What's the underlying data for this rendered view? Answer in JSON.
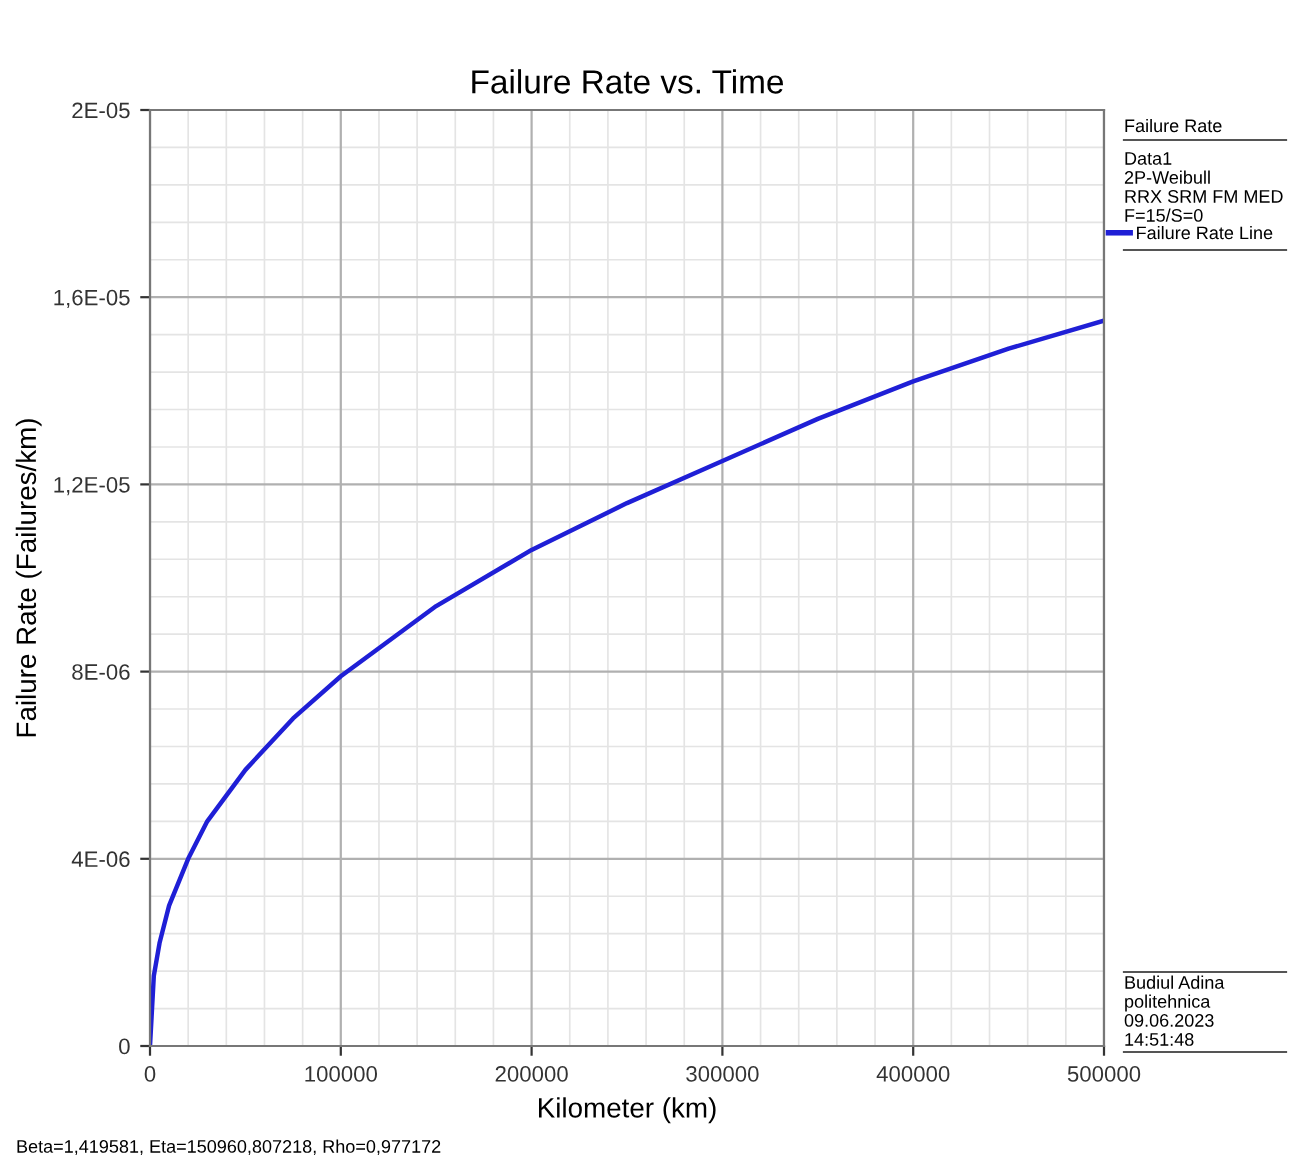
{
  "chart_data": {
    "type": "line",
    "title": "Failure Rate vs. Time",
    "xlabel": "Kilometer (km)",
    "ylabel": "Failure Rate (Failures/km)",
    "legend_title": "Failure Rate",
    "x": [
      0,
      2000,
      5000,
      10000,
      20000,
      30000,
      50000,
      75000,
      100000,
      150000,
      200000,
      250000,
      300000,
      350000,
      400000,
      450000,
      500000
    ],
    "series": [
      {
        "name": "Failure Rate Line",
        "color": "#1f1fd6",
        "values": [
          0,
          1.5e-06,
          2.2e-06,
          3e-06,
          4e-06,
          4.8e-06,
          5.9e-06,
          7e-06,
          7.9e-06,
          9.4e-06,
          1.06e-05,
          1.16e-05,
          1.25e-05,
          1.34e-05,
          1.42e-05,
          1.49e-05,
          1.55e-05
        ]
      }
    ],
    "xlim": [
      0,
      500000
    ],
    "ylim": [
      0,
      2e-05
    ],
    "xticks": [
      0,
      100000,
      200000,
      300000,
      400000,
      500000
    ],
    "yticks": [
      0,
      {
        "value": 4e-06,
        "label": "4E-06"
      },
      {
        "value": 8e-06,
        "label": "8E-06"
      },
      {
        "value": 1.2e-05,
        "label": "1,2E-05"
      },
      {
        "value": 1.6e-05,
        "label": "1,6E-05"
      },
      {
        "value": 2e-05,
        "label": "2E-05"
      }
    ],
    "grid": true,
    "legend": "right",
    "marker": "none",
    "line_style": "solid",
    "annotations": [
      "Data1",
      "2P-Weibull",
      "RRX SRM FM MED",
      "F=15/S=0",
      "Budiul Adina",
      "politehnica",
      "09.06.2023",
      "14:51:48",
      "Beta=1,419581, Eta=150960,807218, Rho=0,977172"
    ]
  }
}
